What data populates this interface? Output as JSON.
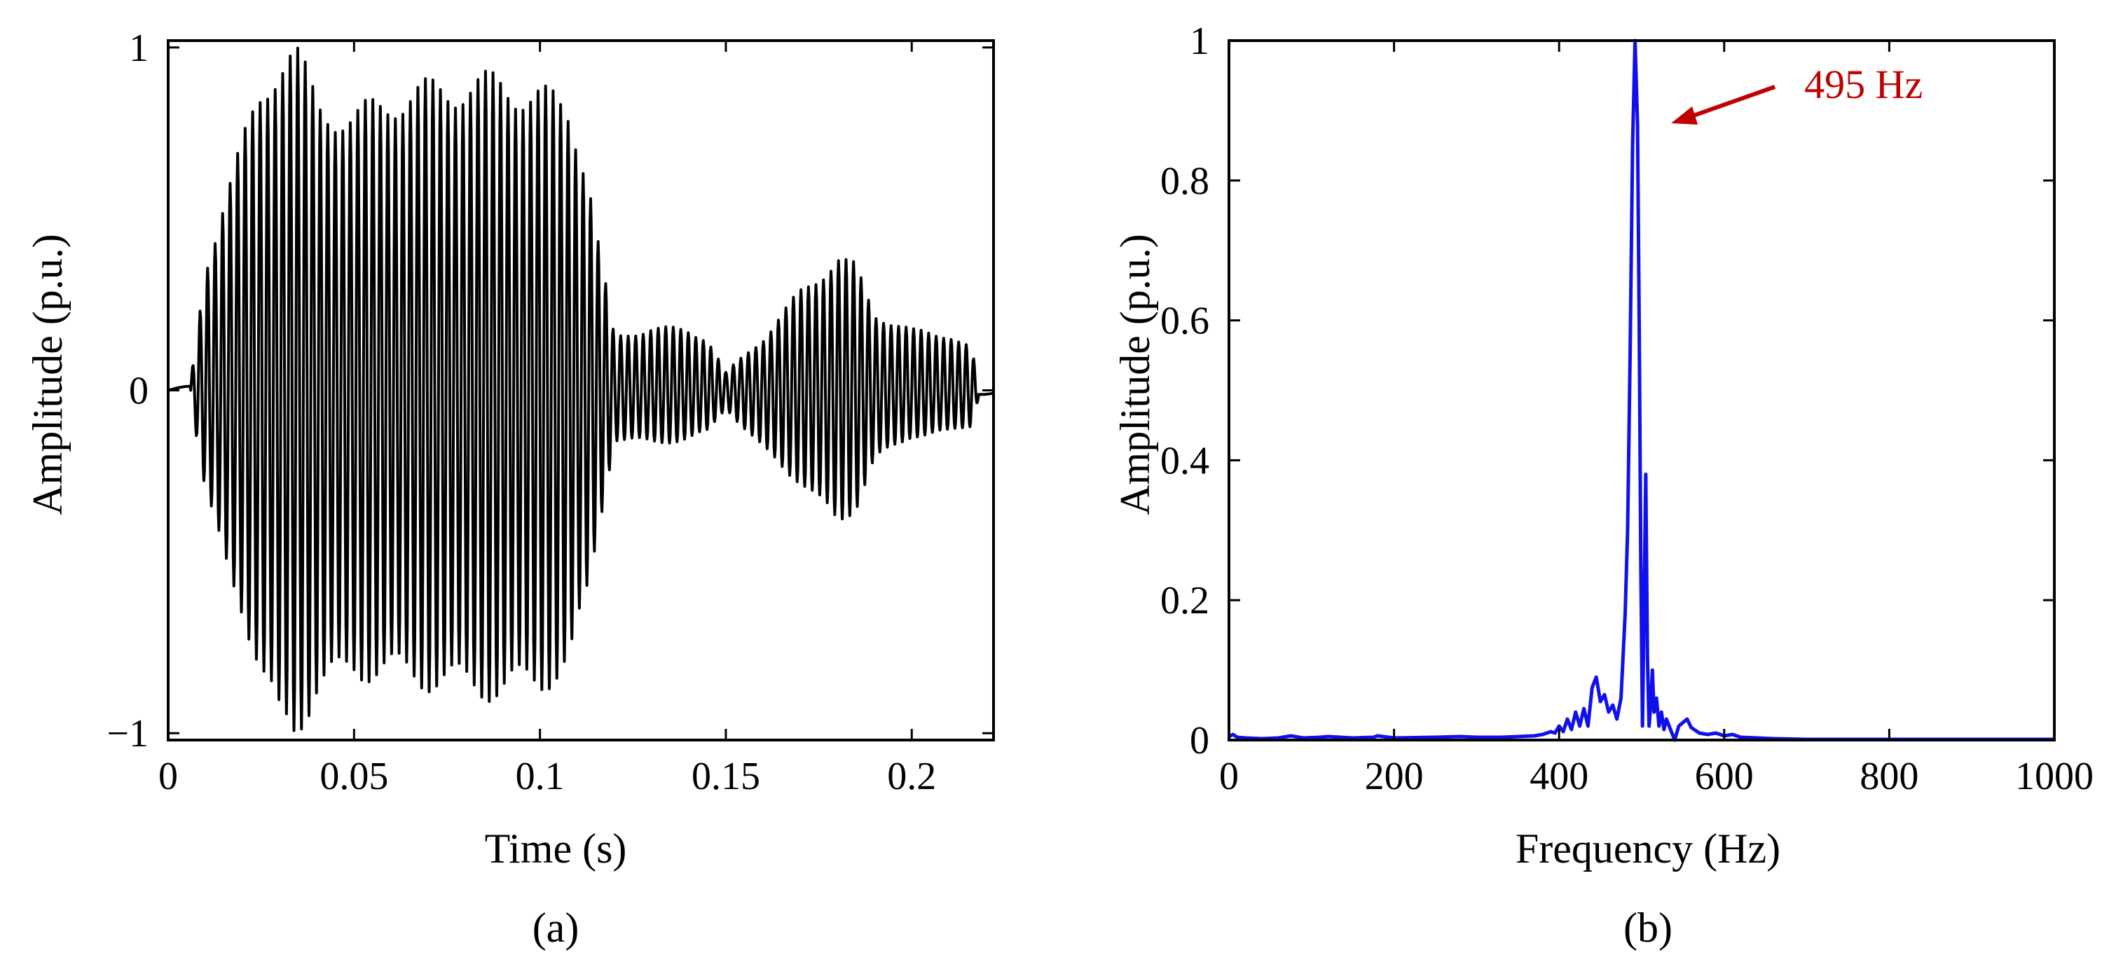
{
  "chart_data": [
    {
      "type": "line",
      "caption": "(a)",
      "xlabel": "Time (s)",
      "ylabel": "Amplitude (p.u.)",
      "xlim": [
        0,
        0.222
      ],
      "ylim": [
        -1.02,
        1.02
      ],
      "x_ticks": [
        0,
        0.05,
        0.1,
        0.15,
        0.2
      ],
      "x_tick_labels": [
        "0",
        "0.05",
        "0.1",
        "0.15",
        "0.2"
      ],
      "y_ticks": [
        -1,
        0,
        1
      ],
      "y_tick_labels": [
        "−1",
        "0",
        "1"
      ],
      "grid": false,
      "line_color": "#000000",
      "series": [
        {
          "waveform": "oscillating signal",
          "start": 0.006,
          "end": 0.218,
          "approx_frequency_hz": 495,
          "envelope": {
            "x": [
              0,
              0.006,
              0.01,
              0.015,
              0.02,
              0.025,
              0.03,
              0.034,
              0.04,
              0.05,
              0.06,
              0.07,
              0.08,
              0.09,
              0.1,
              0.108,
              0.113,
              0.116,
              0.12,
              0.13,
              0.14,
              0.145,
              0.15,
              0.16,
              0.17,
              0.18,
              0.185,
              0.19,
              0.2,
              0.21,
              0.216,
              0.218,
              0.222
            ],
            "upper": [
              0,
              0.02,
              0.35,
              0.55,
              0.7,
              0.85,
              0.96,
              0.98,
              0.82,
              0.78,
              0.84,
              0.86,
              0.88,
              0.88,
              0.85,
              0.8,
              0.62,
              0.4,
              0.15,
              0.18,
              0.17,
              0.15,
              0.05,
              0.15,
              0.28,
              0.38,
              0.35,
              0.22,
              0.17,
              0.16,
              0.12,
              0.02,
              0
            ],
            "lower": [
              0,
              -0.02,
              -0.3,
              -0.48,
              -0.62,
              -0.82,
              -0.96,
              -0.97,
              -0.86,
              -0.8,
              -0.81,
              -0.83,
              -0.85,
              -0.86,
              -0.84,
              -0.78,
              -0.58,
              -0.38,
              -0.14,
              -0.15,
              -0.14,
              -0.12,
              -0.05,
              -0.17,
              -0.26,
              -0.38,
              -0.33,
              -0.2,
              -0.13,
              -0.12,
              -0.1,
              -0.02,
              0
            ]
          }
        }
      ]
    },
    {
      "type": "line",
      "caption": "(b)",
      "xlabel": "Frequency (Hz)",
      "ylabel": "Amplitude (p.u.)",
      "xlim": [
        0,
        1000
      ],
      "ylim": [
        0,
        1.0
      ],
      "x_ticks": [
        0,
        200,
        400,
        600,
        800,
        1000
      ],
      "x_tick_labels": [
        "0",
        "200",
        "400",
        "600",
        "800",
        "1000"
      ],
      "y_ticks": [
        0,
        0.2,
        0.4,
        0.6,
        0.8,
        1
      ],
      "y_tick_labels": [
        "0",
        "0.2",
        "0.4",
        "0.6",
        "0.8",
        "1"
      ],
      "grid": false,
      "line_color": "#1010ee",
      "annotation": {
        "text": "495 Hz",
        "x": 495,
        "y": 1.0,
        "color": "#c00000"
      },
      "series": [
        {
          "x": [
            0,
            5,
            10,
            20,
            40,
            60,
            75,
            90,
            110,
            120,
            150,
            175,
            180,
            200,
            250,
            280,
            300,
            330,
            350,
            370,
            380,
            390,
            395,
            400,
            405,
            410,
            415,
            420,
            425,
            430,
            435,
            440,
            445,
            450,
            455,
            460,
            465,
            470,
            475,
            480,
            483,
            486,
            489,
            492,
            495,
            497,
            499,
            501,
            503,
            505,
            507,
            509,
            511,
            513,
            515,
            518,
            521,
            524,
            527,
            530,
            535,
            540,
            545,
            550,
            555,
            560,
            570,
            580,
            590,
            600,
            610,
            620,
            640,
            660,
            700,
            750,
            800,
            850,
            900,
            950,
            1000
          ],
          "y": [
            0.005,
            0.008,
            0.004,
            0.003,
            0.002,
            0.003,
            0.006,
            0.003,
            0.004,
            0.005,
            0.003,
            0.004,
            0.006,
            0.003,
            0.004,
            0.005,
            0.004,
            0.004,
            0.005,
            0.006,
            0.008,
            0.012,
            0.01,
            0.02,
            0.012,
            0.03,
            0.015,
            0.04,
            0.02,
            0.045,
            0.02,
            0.075,
            0.09,
            0.055,
            0.065,
            0.04,
            0.05,
            0.03,
            0.06,
            0.18,
            0.3,
            0.55,
            0.85,
            1.0,
            0.88,
            0.6,
            0.25,
            0.02,
            0.2,
            0.38,
            0.12,
            0.02,
            0.05,
            0.1,
            0.04,
            0.06,
            0.02,
            0.04,
            0.015,
            0.03,
            0.015,
            0.0,
            0.02,
            0.025,
            0.03,
            0.018,
            0.01,
            0.008,
            0.01,
            0.006,
            0.008,
            0.004,
            0.003,
            0.002,
            0.001,
            0.001,
            0.001,
            0.001,
            0.001,
            0.001,
            0.001
          ]
        }
      ]
    }
  ]
}
